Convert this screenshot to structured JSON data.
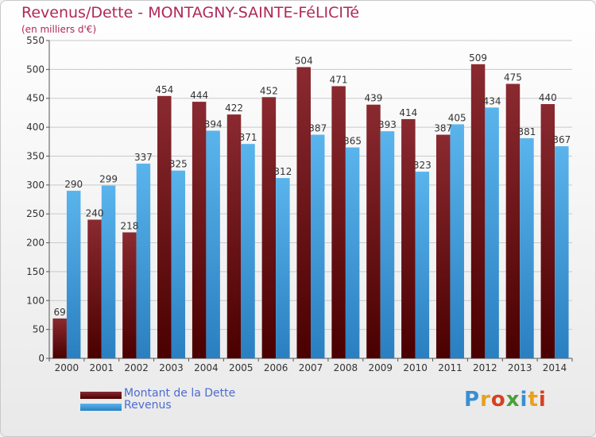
{
  "header": {
    "title": "Revenus/Dette - MONTAGNY-SAINTE-FéLICITé",
    "subtitle": "(en milliers d'€)"
  },
  "colors": {
    "dette": "#7f1d22",
    "dette_dark": "#4a0000",
    "revenus": "#56aee6",
    "revenus_dark": "#2f86c6",
    "title": "#b0285a",
    "legend_text": "#4d6bd0"
  },
  "chart_data": {
    "type": "bar",
    "categories": [
      "2000",
      "2001",
      "2002",
      "2003",
      "2004",
      "2005",
      "2006",
      "2007",
      "2008",
      "2009",
      "2010",
      "2011",
      "2012",
      "2013",
      "2014"
    ],
    "series": [
      {
        "name": "Montant de la Dette",
        "values": [
          69,
          240,
          218,
          454,
          444,
          422,
          452,
          504,
          471,
          439,
          414,
          387,
          509,
          475,
          440
        ]
      },
      {
        "name": "Revenus",
        "values": [
          290,
          299,
          337,
          325,
          394,
          371,
          312,
          387,
          365,
          393,
          323,
          405,
          434,
          381,
          367
        ]
      }
    ],
    "ylim": [
      0,
      550
    ],
    "yticks": [
      0,
      50,
      100,
      150,
      200,
      250,
      300,
      350,
      400,
      450,
      500,
      550
    ],
    "grid": true,
    "legend_placement": "bottom-left"
  },
  "legend": {
    "items": [
      {
        "label": "Montant de la Dette",
        "swatch": "dette"
      },
      {
        "label": "Revenus",
        "swatch": "revenus"
      }
    ]
  },
  "logo": {
    "text": "Proxiti"
  }
}
